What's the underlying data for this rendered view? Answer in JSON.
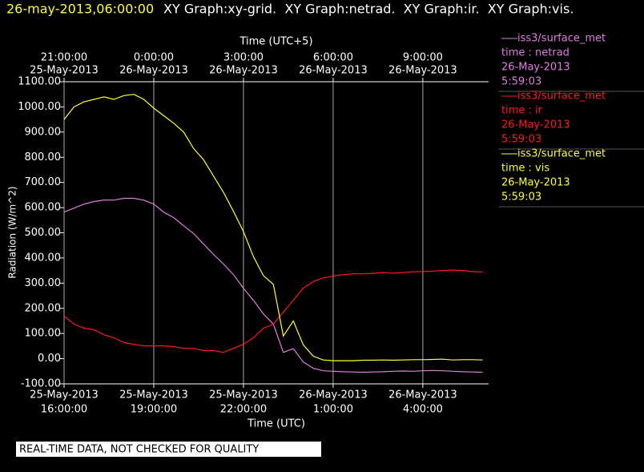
{
  "chart_data": {
    "type": "line",
    "title": "26-may-2013,06:00:00",
    "subtitle": "XY Graph:xy-grid.  XY Graph:netrad.  XY Graph:ir.  XY Graph:vis.",
    "x_label": "Time (UTC)",
    "x2_label": "Time (UTC+5)",
    "y_label": "Radiation (W/m^2)",
    "annotation": "REAL-TIME DATA, NOT CHECKED FOR QUALITY",
    "grid": true,
    "x": [
      "2013-05-25 16:00",
      "2013-05-25 16:20",
      "2013-05-25 16:40",
      "2013-05-25 17:00",
      "2013-05-25 17:20",
      "2013-05-25 17:40",
      "2013-05-25 18:00",
      "2013-05-25 18:20",
      "2013-05-25 18:40",
      "2013-05-25 19:00",
      "2013-05-25 19:20",
      "2013-05-25 19:40",
      "2013-05-25 20:00",
      "2013-05-25 20:20",
      "2013-05-25 20:40",
      "2013-05-25 21:00",
      "2013-05-25 21:20",
      "2013-05-25 21:40",
      "2013-05-25 22:00",
      "2013-05-25 22:20",
      "2013-05-25 22:40",
      "2013-05-25 23:00",
      "2013-05-25 23:20",
      "2013-05-25 23:40",
      "2013-05-26 00:00",
      "2013-05-26 00:20",
      "2013-05-26 00:40",
      "2013-05-26 01:00",
      "2013-05-26 01:20",
      "2013-05-26 01:40",
      "2013-05-26 02:00",
      "2013-05-26 02:20",
      "2013-05-26 02:40",
      "2013-05-26 03:00",
      "2013-05-26 03:20",
      "2013-05-26 03:40",
      "2013-05-26 04:00",
      "2013-05-26 04:20",
      "2013-05-26 04:40",
      "2013-05-26 05:00",
      "2013-05-26 05:20",
      "2013-05-26 05:40",
      "2013-05-26 06:00"
    ],
    "xlim": [
      "2013-05-25 16:00",
      "2013-05-26 06:12"
    ],
    "xticks": [
      {
        "value": "2013-05-25 16:00",
        "label": [
          "25-May-2013",
          "16:00:00"
        ]
      },
      {
        "value": "2013-05-25 19:00",
        "label": [
          "25-May-2013",
          "19:00:00"
        ]
      },
      {
        "value": "2013-05-25 22:00",
        "label": [
          "25-May-2013",
          "22:00:00"
        ]
      },
      {
        "value": "2013-05-26 01:00",
        "label": [
          "26-May-2013",
          "1:00:00"
        ]
      },
      {
        "value": "2013-05-26 04:00",
        "label": [
          "26-May-2013",
          "4:00:00"
        ]
      }
    ],
    "x2ticks": [
      {
        "value": "2013-05-25 16:00",
        "label": [
          "21:00:00",
          "25-May-2013"
        ]
      },
      {
        "value": "2013-05-25 19:00",
        "label": [
          "0:00:00",
          "26-May-2013"
        ]
      },
      {
        "value": "2013-05-25 22:00",
        "label": [
          "3:00:00",
          "26-May-2013"
        ]
      },
      {
        "value": "2013-05-26 01:00",
        "label": [
          "6:00:00",
          "26-May-2013"
        ]
      },
      {
        "value": "2013-05-26 04:00",
        "label": [
          "9:00:00",
          "26-May-2013"
        ]
      }
    ],
    "ylim": [
      -100,
      1100
    ],
    "yticks": [
      {
        "value": -100,
        "label": "-100.00"
      },
      {
        "value": 0,
        "label": "0.00"
      },
      {
        "value": 100,
        "label": "100.00"
      },
      {
        "value": 200,
        "label": "200.00"
      },
      {
        "value": 300,
        "label": "300.00"
      },
      {
        "value": 400,
        "label": "400.00"
      },
      {
        "value": 500,
        "label": "500.00"
      },
      {
        "value": 600,
        "label": "600.00"
      },
      {
        "value": 700,
        "label": "700.00"
      },
      {
        "value": 800,
        "label": "800.00"
      },
      {
        "value": 900,
        "label": "900.00"
      },
      {
        "value": 1000,
        "label": "1000.00"
      },
      {
        "value": 1100,
        "label": "1100.00"
      }
    ],
    "series": [
      {
        "name": "iss3/surface_met",
        "variable": "time : netrad",
        "date": "26-May-2013",
        "time": "5:59:03",
        "color": "#e07ee0",
        "values": [
          582,
          598,
          614,
          624,
          630,
          630,
          637,
          637,
          630,
          614,
          582,
          560,
          528,
          497,
          455,
          414,
          376,
          334,
          280,
          232,
          178,
          137,
          25,
          40,
          -13,
          -38,
          -48,
          -50,
          -52,
          -53,
          -54,
          -53,
          -52,
          -50,
          -49,
          -50,
          -48,
          -47,
          -48,
          -50,
          -52,
          -53,
          -54
        ]
      },
      {
        "name": "iss3/surface_met",
        "variable": "time : ir",
        "date": "26-May-2013",
        "time": "5:59:03",
        "color": "#ff1a1a",
        "values": [
          169,
          137,
          121,
          115,
          95,
          83,
          64,
          57,
          51,
          51,
          51,
          48,
          41,
          41,
          32,
          32,
          25,
          41,
          57,
          83,
          121,
          137,
          185,
          232,
          280,
          306,
          321,
          328,
          334,
          337,
          337,
          339,
          342,
          340,
          342,
          345,
          346,
          348,
          350,
          352,
          350,
          346,
          344
        ]
      },
      {
        "name": "iss3/surface_met",
        "variable": "time : vis",
        "date": "26-May-2013",
        "time": "5:59:03",
        "color": "#ffff33",
        "values": [
          950,
          1000,
          1020,
          1030,
          1040,
          1030,
          1045,
          1050,
          1030,
          995,
          965,
          935,
          900,
          835,
          790,
          725,
          660,
          585,
          505,
          405,
          330,
          295,
          90,
          150,
          55,
          10,
          -5,
          -8,
          -8,
          -8,
          -6,
          -6,
          -5,
          -6,
          -5,
          -4,
          -4,
          -3,
          -2,
          -5,
          -4,
          -4,
          -5
        ]
      }
    ]
  }
}
